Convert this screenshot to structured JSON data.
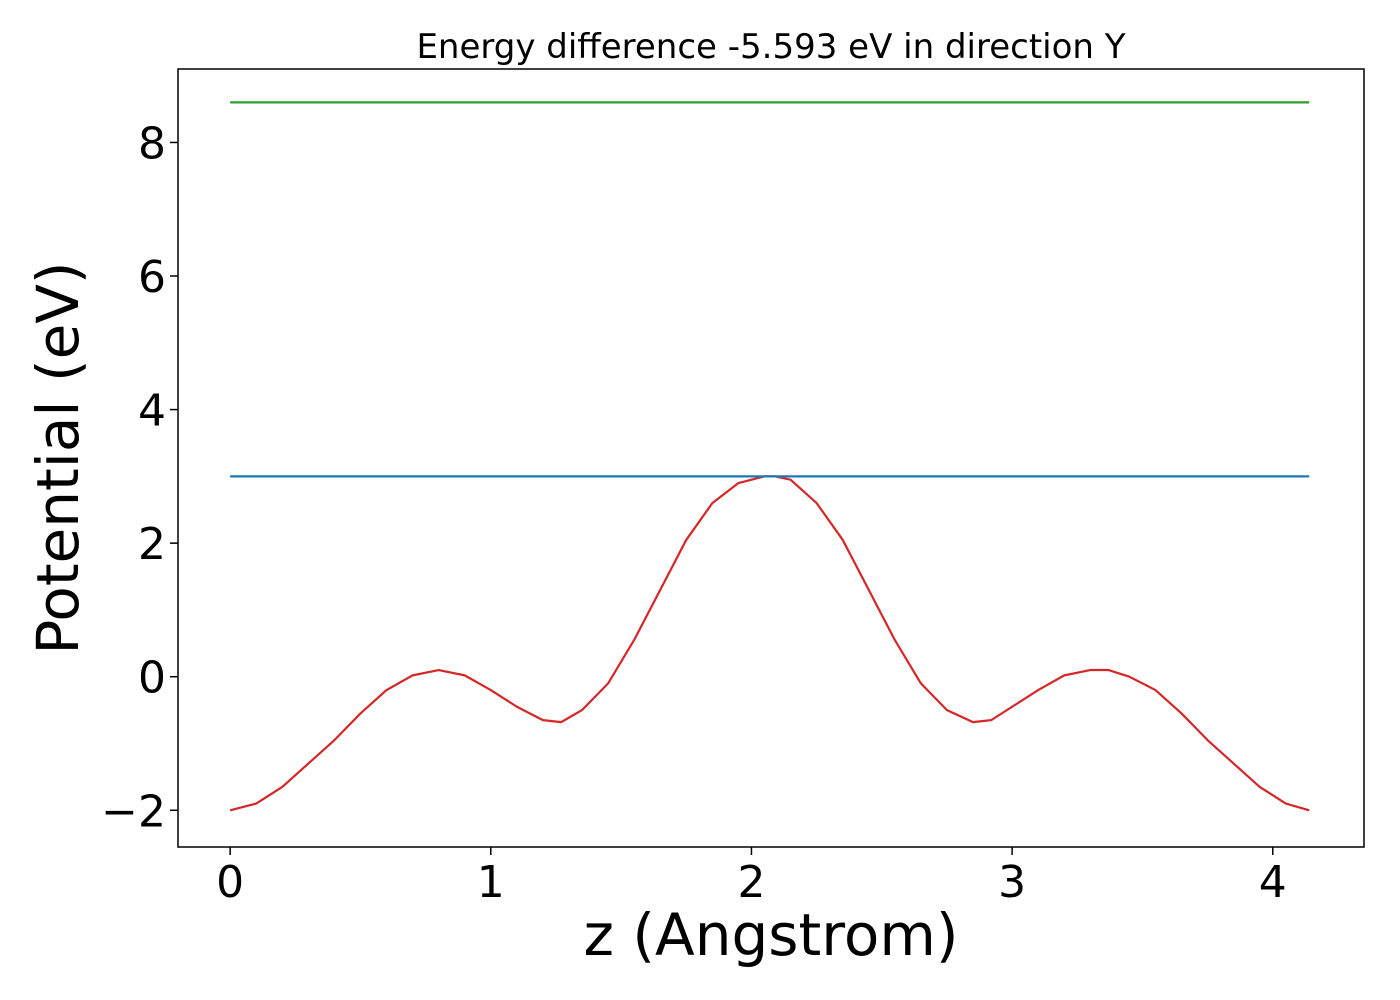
{
  "chart_data": {
    "type": "line",
    "title": "Energy difference -5.593 eV in direction Y",
    "xlabel": "z (Angstrom)",
    "ylabel": "Potential (eV)",
    "xlim": [
      -0.2,
      4.35
    ],
    "ylim": [
      -2.55,
      9.1
    ],
    "xticks": [
      0,
      1,
      2,
      3,
      4
    ],
    "yticks": [
      -2,
      0,
      2,
      4,
      6,
      8
    ],
    "xtick_labels": [
      "0",
      "1",
      "2",
      "3",
      "4"
    ],
    "ytick_labels": [
      "−2",
      "0",
      "2",
      "4",
      "6",
      "8"
    ],
    "grid": false,
    "series": [
      {
        "color": "#d62728",
        "x": [
          0,
          0.1,
          0.2,
          0.3,
          0.4,
          0.5,
          0.6,
          0.7,
          0.8,
          0.9,
          1.0,
          1.1,
          1.2,
          1.27,
          1.35,
          1.45,
          1.55,
          1.65,
          1.75,
          1.85,
          1.95,
          2.05,
          2.09,
          2.15,
          2.25,
          2.35,
          2.45,
          2.55,
          2.65,
          2.75,
          2.85,
          2.92,
          3.0,
          3.1,
          3.2,
          3.3,
          3.37,
          3.45,
          3.55,
          3.65,
          3.75,
          3.85,
          3.95,
          4.05,
          4.14
        ],
        "y": [
          -2.0,
          -1.9,
          -1.65,
          -1.3,
          -0.95,
          -0.55,
          -0.2,
          0.02,
          0.1,
          0.02,
          -0.2,
          -0.45,
          -0.65,
          -0.68,
          -0.5,
          -0.1,
          0.55,
          1.3,
          2.05,
          2.6,
          2.9,
          3.0,
          3.0,
          2.95,
          2.6,
          2.05,
          1.3,
          0.55,
          -0.1,
          -0.5,
          -0.68,
          -0.65,
          -0.45,
          -0.2,
          0.02,
          0.1,
          0.1,
          0.0,
          -0.2,
          -0.55,
          -0.95,
          -1.3,
          -1.65,
          -1.9,
          -2.0
        ]
      },
      {
        "color": "#1f77b4",
        "x": [
          0,
          4.14
        ],
        "y": [
          3.0,
          3.0
        ]
      },
      {
        "color": "#2ca02c",
        "x": [
          0,
          4.14
        ],
        "y": [
          8.6,
          8.6
        ]
      }
    ]
  }
}
